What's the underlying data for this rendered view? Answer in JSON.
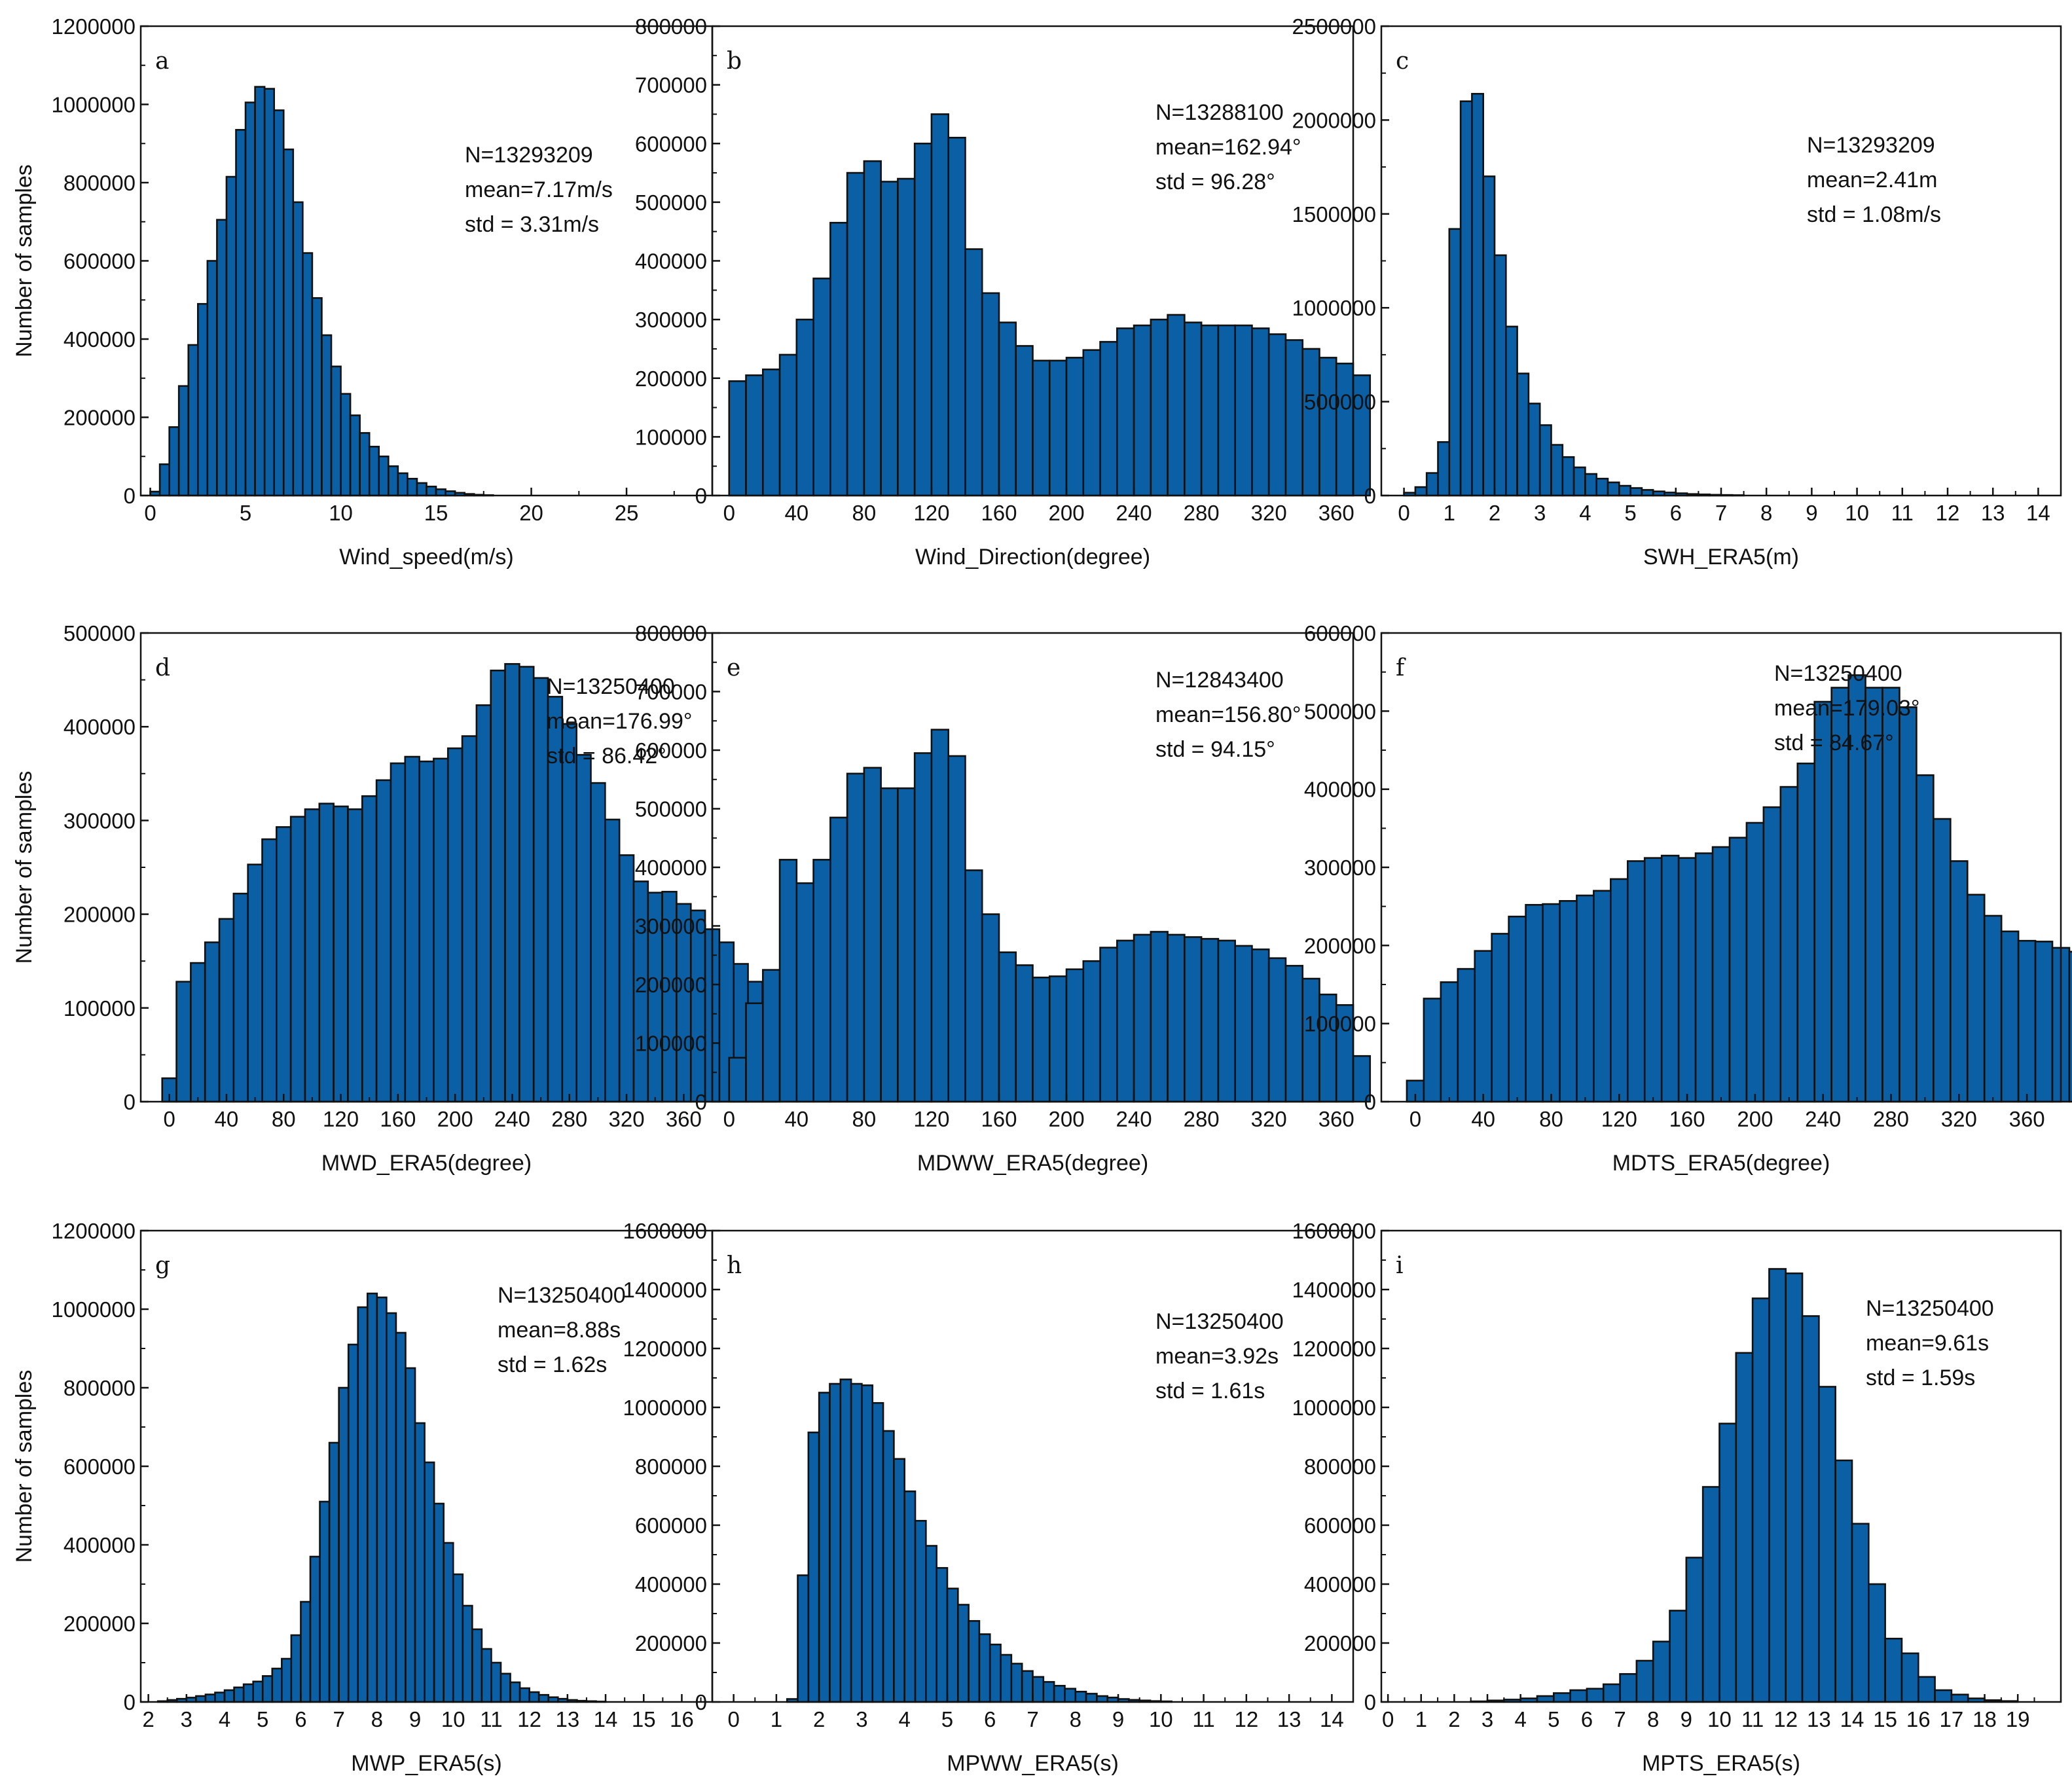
{
  "figure": {
    "bar_color": "#0a5fa5",
    "edge_color": "#111111"
  },
  "chart_data": [
    {
      "type": "bar",
      "panel": "a",
      "xlabel": "Wind_speed(m/s)",
      "ylabel": "Number of samples",
      "xlim": [
        -0.5,
        29.5
      ],
      "ylim": [
        0,
        1200000
      ],
      "xticks": [
        0,
        5,
        10,
        15,
        20,
        25
      ],
      "yticks": [
        0,
        200000,
        400000,
        600000,
        800000,
        1000000,
        1200000
      ],
      "bin_start": 0,
      "bin_width": 0.5,
      "values": [
        10000,
        80000,
        175000,
        280000,
        385000,
        490000,
        600000,
        705000,
        815000,
        935000,
        1005000,
        1045000,
        1040000,
        985000,
        885000,
        750000,
        620000,
        505000,
        410000,
        330000,
        260000,
        205000,
        160000,
        125000,
        100000,
        75000,
        57000,
        43000,
        32000,
        23000,
        16000,
        11000,
        7000,
        4000,
        2000,
        1000
      ],
      "stats": {
        "n": "N=13293209",
        "mean": "mean=7.17m/s",
        "std": "std = 3.31m/s"
      }
    },
    {
      "type": "bar",
      "panel": "b",
      "xlabel": "Wind_Direction(degree)",
      "ylabel": "",
      "xlim": [
        -10,
        370
      ],
      "ylim": [
        0,
        800000
      ],
      "xticks": [
        0,
        40,
        80,
        120,
        160,
        200,
        240,
        280,
        320,
        360
      ],
      "yticks": [
        0,
        100000,
        200000,
        300000,
        400000,
        500000,
        600000,
        700000,
        800000
      ],
      "bin_start": 0,
      "bin_width": 10,
      "values": [
        195000,
        205000,
        215000,
        240000,
        300000,
        370000,
        465000,
        550000,
        570000,
        535000,
        540000,
        600000,
        650000,
        610000,
        420000,
        345000,
        295000,
        255000,
        230000,
        230000,
        235000,
        248000,
        262000,
        285000,
        290000,
        300000,
        308000,
        295000,
        290000,
        290000,
        290000,
        285000,
        275000,
        265000,
        250000,
        235000,
        225000,
        205000
      ],
      "stats": {
        "n": "N=13288100",
        "mean": "mean=162.94°",
        "std": "std = 96.28°"
      }
    },
    {
      "type": "bar",
      "panel": "c",
      "xlabel": "SWH_ERA5(m)",
      "ylabel": "",
      "xlim": [
        -0.5,
        14.5
      ],
      "ylim": [
        0,
        2500000
      ],
      "xticks": [
        0,
        1,
        2,
        3,
        4,
        5,
        6,
        7,
        8,
        9,
        10,
        11,
        12,
        13,
        14
      ],
      "yticks": [
        0,
        500000,
        1000000,
        1500000,
        2000000,
        2500000
      ],
      "bin_start": 0,
      "bin_width": 0.25,
      "values": [
        15000,
        45000,
        120000,
        285000,
        1420000,
        2100000,
        2140000,
        1700000,
        1280000,
        900000,
        650000,
        490000,
        375000,
        270000,
        205000,
        150000,
        115000,
        90000,
        70000,
        52000,
        40000,
        30000,
        22000,
        16000,
        12000,
        8000,
        6000,
        4000,
        3000,
        2000,
        1500,
        1000,
        800
      ],
      "stats": {
        "n": "N=13293209",
        "mean": "mean=2.41m",
        "std": "std = 1.08m/s"
      }
    },
    {
      "type": "bar",
      "panel": "d",
      "xlabel": "MWD_ERA5(degree)",
      "ylabel": "Number of samples",
      "xlim": [
        -20,
        380
      ],
      "ylim": [
        0,
        500000
      ],
      "xticks": [
        0,
        40,
        80,
        120,
        160,
        200,
        240,
        280,
        320,
        360
      ],
      "yticks": [
        0,
        100000,
        200000,
        300000,
        400000,
        500000
      ],
      "bin_start": -5,
      "bin_width": 10,
      "values": [
        25000,
        128000,
        148000,
        170000,
        195000,
        222000,
        253000,
        280000,
        293000,
        304000,
        312000,
        318000,
        315000,
        312000,
        326000,
        343000,
        361000,
        368000,
        363000,
        366000,
        377000,
        390000,
        423000,
        460000,
        467000,
        464000,
        452000,
        432000,
        403000,
        370000,
        340000,
        301000,
        263000,
        235000,
        223000,
        224000,
        211000,
        204000,
        184000,
        170000,
        147000,
        128000,
        27000
      ],
      "stats": {
        "n": "N=13250400",
        "mean": "mean=176.99°",
        "std": "std = 86.42°"
      }
    },
    {
      "type": "bar",
      "panel": "e",
      "xlabel": "MDWW_ERA5(degree)",
      "ylabel": "",
      "xlim": [
        -10,
        370
      ],
      "ylim": [
        0,
        800000
      ],
      "xticks": [
        0,
        40,
        80,
        120,
        160,
        200,
        240,
        280,
        320,
        360
      ],
      "yticks": [
        0,
        100000,
        200000,
        300000,
        400000,
        500000,
        600000,
        700000,
        800000
      ],
      "bin_start": 0,
      "bin_width": 10,
      "values": [
        75000,
        168000,
        225000,
        413000,
        373000,
        413000,
        485000,
        560000,
        570000,
        535000,
        535000,
        595000,
        635000,
        590000,
        395000,
        320000,
        255000,
        233000,
        212000,
        214000,
        226000,
        240000,
        263000,
        275000,
        285000,
        290000,
        285000,
        281000,
        278000,
        275000,
        266000,
        260000,
        245000,
        232000,
        210000,
        183000,
        165000,
        78000
      ],
      "stats": {
        "n": "N=12843400",
        "mean": "mean=156.80°",
        "std": "std = 94.15°"
      }
    },
    {
      "type": "bar",
      "panel": "f",
      "xlabel": "MDTS_ERA5(degree)",
      "ylabel": "",
      "xlim": [
        -20,
        380
      ],
      "ylim": [
        0,
        600000
      ],
      "xticks": [
        0,
        40,
        80,
        120,
        160,
        200,
        240,
        280,
        320,
        360
      ],
      "yticks": [
        0,
        100000,
        200000,
        300000,
        400000,
        500000,
        600000
      ],
      "bin_start": -5,
      "bin_width": 10,
      "values": [
        27000,
        132000,
        153000,
        170000,
        193000,
        215000,
        237000,
        252000,
        253000,
        257000,
        264000,
        270000,
        285000,
        308000,
        312000,
        315000,
        312000,
        318000,
        326000,
        338000,
        357000,
        377000,
        403000,
        433000,
        512000,
        530000,
        546000,
        530000,
        530000,
        505000,
        418000,
        362000,
        308000,
        265000,
        238000,
        218000,
        206000,
        205000,
        197000,
        192000,
        178000,
        167000,
        157000,
        138000,
        24000
      ],
      "stats": {
        "n": "N=13250400",
        "mean": "mean=179.03°",
        "std": "std = 84.67°"
      }
    },
    {
      "type": "bar",
      "panel": "g",
      "xlabel": "MWP_ERA5(s)",
      "ylabel": "Number of samples",
      "xlim": [
        1.8,
        16.8
      ],
      "ylim": [
        0,
        1200000
      ],
      "xticks": [
        2,
        3,
        4,
        5,
        6,
        7,
        8,
        9,
        10,
        11,
        12,
        13,
        14,
        15,
        16
      ],
      "yticks": [
        0,
        200000,
        400000,
        600000,
        800000,
        1000000,
        1200000
      ],
      "bin_start": 2.25,
      "bin_width": 0.25,
      "values": [
        2000,
        5000,
        8000,
        11000,
        15000,
        19000,
        24000,
        30000,
        37000,
        45000,
        52000,
        66000,
        85000,
        110000,
        170000,
        255000,
        370000,
        510000,
        660000,
        800000,
        910000,
        1005000,
        1040000,
        1030000,
        990000,
        940000,
        850000,
        710000,
        610000,
        505000,
        405000,
        325000,
        245000,
        185000,
        135000,
        100000,
        72000,
        50000,
        35000,
        25000,
        18000,
        12000,
        8000,
        5000,
        3000,
        2000,
        1000
      ],
      "stats": {
        "n": "N=13250400",
        "mean": "mean=8.88s",
        "std": "std = 1.62s"
      }
    },
    {
      "type": "bar",
      "panel": "h",
      "xlabel": "MPWW_ERA5(s)",
      "ylabel": "",
      "xlim": [
        -0.5,
        14.5
      ],
      "ylim": [
        0,
        1600000
      ],
      "xticks": [
        0,
        1,
        2,
        3,
        4,
        5,
        6,
        7,
        8,
        9,
        10,
        11,
        12,
        13,
        14
      ],
      "yticks": [
        0,
        200000,
        400000,
        600000,
        800000,
        1000000,
        1200000,
        1400000,
        1600000
      ],
      "bin_start": 1.25,
      "bin_width": 0.25,
      "values": [
        10000,
        430000,
        915000,
        1050000,
        1080000,
        1095000,
        1080000,
        1075000,
        1015000,
        920000,
        825000,
        715000,
        615000,
        530000,
        455000,
        385000,
        330000,
        275000,
        230000,
        195000,
        160000,
        130000,
        105000,
        85000,
        68000,
        55000,
        45000,
        35000,
        28000,
        20000,
        15000,
        10000,
        7000,
        5000,
        3000,
        2000,
        1000
      ],
      "stats": {
        "n": "N=13250400",
        "mean": "mean=3.92s",
        "std": "std = 1.61s"
      }
    },
    {
      "type": "bar",
      "panel": "i",
      "xlabel": "MPTS_ERA5(s)",
      "ylabel": "",
      "xlim": [
        -0.2,
        20.3
      ],
      "ylim": [
        0,
        1600000
      ],
      "xticks": [
        0,
        1,
        2,
        3,
        4,
        5,
        6,
        7,
        8,
        9,
        10,
        11,
        12,
        13,
        14,
        15,
        16,
        17,
        18,
        19
      ],
      "yticks": [
        0,
        200000,
        400000,
        600000,
        800000,
        1000000,
        1200000,
        1400000,
        1600000
      ],
      "bin_start": 0,
      "bin_width": 0.5,
      "values": [
        0,
        0,
        0,
        0,
        1000,
        2000,
        5000,
        8000,
        12000,
        20000,
        30000,
        40000,
        45000,
        60000,
        95000,
        140000,
        205000,
        310000,
        490000,
        730000,
        945000,
        1185000,
        1370000,
        1470000,
        1455000,
        1310000,
        1070000,
        820000,
        605000,
        400000,
        215000,
        165000,
        85000,
        40000,
        25000,
        12000,
        6000,
        3000,
        1000,
        500
      ],
      "stats": {
        "n": "N=13250400",
        "mean": "mean=9.61s",
        "std": "std = 1.59s"
      }
    }
  ]
}
